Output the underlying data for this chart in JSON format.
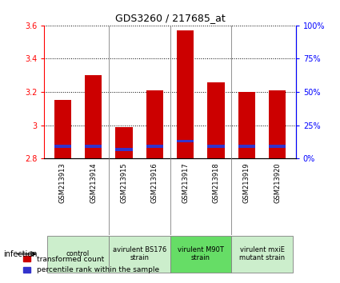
{
  "title": "GDS3260 / 217685_at",
  "samples": [
    "GSM213913",
    "GSM213914",
    "GSM213915",
    "GSM213916",
    "GSM213917",
    "GSM213918",
    "GSM213919",
    "GSM213920"
  ],
  "red_values": [
    3.15,
    3.3,
    2.99,
    3.21,
    3.57,
    3.26,
    3.2,
    3.21
  ],
  "blue_positions": [
    2.875,
    2.875,
    2.855,
    2.875,
    2.905,
    2.875,
    2.875,
    2.875
  ],
  "ymin": 2.8,
  "ymax": 3.6,
  "red_color": "#cc0000",
  "blue_color": "#3333cc",
  "bar_width": 0.55,
  "blue_bar_height": 0.018,
  "groups": [
    {
      "label": "control",
      "samples": [
        0,
        1
      ],
      "color": "#cceecc"
    },
    {
      "label": "avirulent BS176\nstrain",
      "samples": [
        2,
        3
      ],
      "color": "#cceecc"
    },
    {
      "label": "virulent M90T\nstrain",
      "samples": [
        4,
        5
      ],
      "color": "#66dd66"
    },
    {
      "label": "virulent mxiE\nmutant strain",
      "samples": [
        6,
        7
      ],
      "color": "#cceecc"
    }
  ],
  "group_dividers": [
    1.5,
    3.5,
    5.5
  ],
  "left_yticks": [
    2.8,
    3.0,
    3.2,
    3.4,
    3.6
  ],
  "left_ylabels": [
    "2.8",
    "3",
    "3.2",
    "3.4",
    "3.6"
  ],
  "right_yticks": [
    0,
    25,
    50,
    75,
    100
  ],
  "right_ylabels": [
    "0%",
    "25%",
    "50%",
    "75%",
    "100%"
  ],
  "tick_fontsize": 7,
  "title_fontsize": 9,
  "sample_fontsize": 6,
  "group_fontsize": 6,
  "legend_fontsize": 6.5
}
